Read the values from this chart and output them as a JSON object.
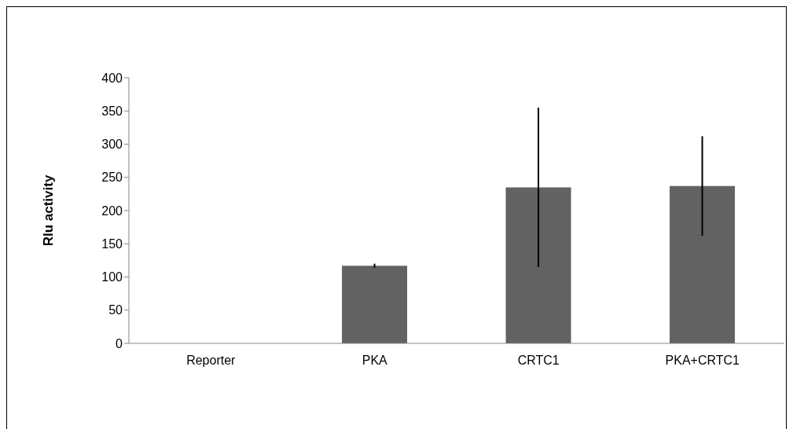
{
  "chart_data": {
    "type": "bar",
    "ylabel": "Rlu activity",
    "categories": [
      "Reporter",
      "PKA",
      "CRTC1",
      "PKA+CRTC1"
    ],
    "values": [
      0,
      117,
      235,
      237
    ],
    "errors": [
      null,
      3,
      120,
      75
    ],
    "color": "#626262",
    "ylim": [
      0,
      400
    ],
    "yticks": [
      0,
      50,
      100,
      150,
      200,
      250,
      300,
      350,
      400
    ],
    "grid": false,
    "legend": false
  }
}
